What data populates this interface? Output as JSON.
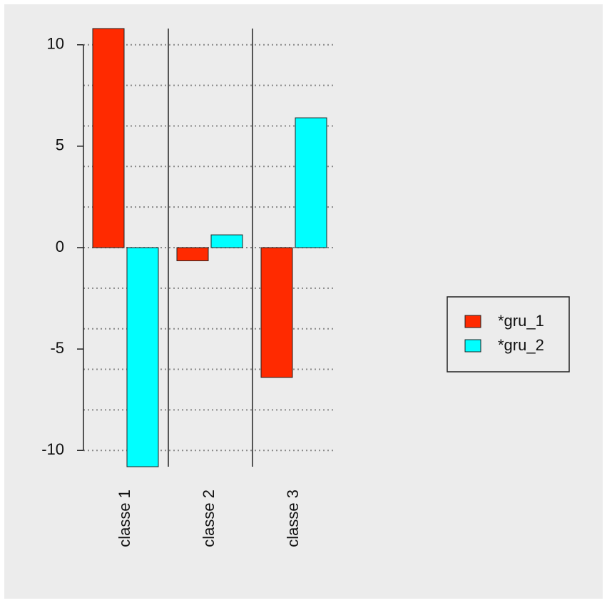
{
  "chart_data": {
    "type": "grouped_bar",
    "categories": [
      "classe 1",
      "classe 2",
      "classe 3"
    ],
    "series": [
      {
        "name": "*gru_1",
        "color": "#ff2a00",
        "values": [
          10.8,
          -0.65,
          -6.4
        ]
      },
      {
        "name": "*gru_2",
        "color": "#00ffff",
        "values": [
          -10.8,
          0.63,
          6.4
        ]
      }
    ],
    "ylim": [
      -10.8,
      10.8
    ],
    "yticks": [
      -10,
      -5,
      0,
      5,
      10
    ],
    "y_grid": [
      -10,
      -8,
      -6,
      -4,
      -2,
      0,
      2,
      4,
      6,
      8,
      10
    ],
    "grid": true,
    "legend_position": "right"
  }
}
